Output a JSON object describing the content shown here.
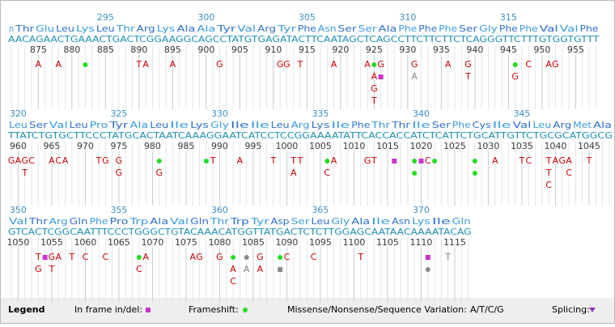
{
  "colors": {
    "aa_a": "#2f6fd0",
    "aa_b": "#3a9be0",
    "sequence": "#1f8fb8",
    "number": "#3a8fc8",
    "variation": "#cc0000",
    "frameshift": "#22dd22",
    "inframe": "#cc33cc",
    "gray": "#8a8a8a",
    "splicing": "#9933cc"
  },
  "rows": [
    {
      "start": 871,
      "aa_numbers": [
        295,
        300,
        305,
        310,
        315
      ],
      "amino_acids": [
        "n",
        "Thr",
        "Glu",
        "Leu",
        "Lys",
        "Leu",
        "Thr",
        "Arg",
        "Lys",
        "Ala",
        "Ala",
        "Tyr",
        "Val",
        "Arg",
        "Tyr",
        "Phe",
        "Asn",
        "Ser",
        "Ser",
        "Ala",
        "Phe",
        "Phe",
        "Phe",
        "Ser",
        "Gly",
        "Phe",
        "Phe",
        "Val",
        "Val",
        "Phe"
      ],
      "sequence": "AACAGAACTGAAACTGACTCGGAAGGCAGCCTATGTGAGATACTTCAATAGCTCAGCCTTCTTCTTCTCAGGGTTCTTTGTGGTGTTT",
      "nt_numbers": [
        875,
        880,
        885,
        890,
        895,
        900,
        905,
        910,
        915,
        920,
        925,
        930,
        935,
        940,
        945,
        950,
        955
      ],
      "variants": [
        {
          "pos": 875,
          "items": [
            {
              "text": "A"
            }
          ]
        },
        {
          "pos": 878,
          "items": [
            {
              "text": "A"
            }
          ]
        },
        {
          "pos": 882,
          "items": [
            {
              "shape": "dot",
              "color": "frameshift"
            }
          ]
        },
        {
          "pos": 890,
          "items": [
            {
              "text": "T"
            }
          ]
        },
        {
          "pos": 891,
          "items": [
            {
              "text": "A"
            }
          ]
        },
        {
          "pos": 895,
          "items": [
            {
              "text": "A"
            }
          ]
        },
        {
          "pos": 902,
          "items": [
            {
              "text": "G"
            }
          ]
        },
        {
          "pos": 911,
          "items": [
            {
              "text": "G"
            }
          ]
        },
        {
          "pos": 912,
          "items": [
            {
              "text": "G"
            }
          ]
        },
        {
          "pos": 914,
          "items": [
            {
              "text": "T"
            }
          ]
        },
        {
          "pos": 919,
          "items": [
            {
              "text": "A"
            }
          ]
        },
        {
          "pos": 924,
          "items": [
            {
              "text": "A"
            }
          ]
        },
        {
          "pos": 925,
          "items": [
            {
              "shape": "dot",
              "color": "frameshift"
            },
            {
              "text": "A"
            },
            {
              "text": "G"
            },
            {
              "text": "T"
            }
          ]
        },
        {
          "pos": 926,
          "items": [
            {
              "text": "G"
            },
            {
              "shape": "square",
              "color": "inframe"
            }
          ]
        },
        {
          "pos": 931,
          "items": [
            {
              "text": "G"
            },
            {
              "text": "A",
              "color": "gray"
            }
          ]
        },
        {
          "pos": 936,
          "items": [
            {
              "text": "A"
            }
          ]
        },
        {
          "pos": 939,
          "items": [
            {
              "text": "G"
            },
            {
              "text": "T"
            }
          ]
        },
        {
          "pos": 946,
          "items": [
            {
              "shape": "dot",
              "color": "frameshift"
            },
            {
              "text": "G"
            }
          ]
        },
        {
          "pos": 948,
          "items": [
            {
              "text": "C"
            }
          ]
        },
        {
          "pos": 951,
          "items": [
            {
              "text": "A"
            }
          ]
        },
        {
          "pos": 952,
          "items": [
            {
              "text": "G"
            }
          ]
        }
      ]
    },
    {
      "start": 959,
      "aa_numbers": [
        320,
        325,
        330,
        335,
        340,
        345
      ],
      "amino_acids": [
        "Leu",
        "Ser",
        "Val",
        "Leu",
        "Pro",
        "Tyr",
        "Ala",
        "Leu",
        "Ile",
        "Lys",
        "Gly",
        "Ile",
        "Ile",
        "Leu",
        "Arg",
        "Lys",
        "Ile",
        "Phe",
        "Thr",
        "Thr",
        "Ile",
        "Ser",
        "Phe",
        "Cys",
        "Ile",
        "Val",
        "Leu",
        "Arg",
        "Met",
        "Ala"
      ],
      "sequence": "TTATCTGTGCTTCCCTATGCACTAATCAAAGGAATCATCCTCCGGAAAATATTCACCACCATCTCATTCTGCATTGTTCTGCGCATGGCG",
      "nt_numbers": [
        960,
        965,
        970,
        975,
        980,
        985,
        990,
        995,
        1000,
        1005,
        1010,
        1015,
        1020,
        1025,
        1030,
        1035,
        1040,
        1045
      ],
      "variants": [
        {
          "pos": 959,
          "items": [
            {
              "text": "G"
            }
          ]
        },
        {
          "pos": 960,
          "items": [
            {
              "text": "A"
            }
          ]
        },
        {
          "pos": 961,
          "items": [
            {
              "text": "G"
            },
            {
              "text": "T"
            }
          ]
        },
        {
          "pos": 962,
          "items": [
            {
              "text": "C"
            }
          ]
        },
        {
          "pos": 965,
          "items": [
            {
              "text": "A"
            }
          ]
        },
        {
          "pos": 966,
          "items": [
            {
              "text": "C"
            }
          ]
        },
        {
          "pos": 967,
          "items": [
            {
              "text": "A"
            }
          ]
        },
        {
          "pos": 972,
          "items": [
            {
              "text": "T"
            }
          ]
        },
        {
          "pos": 973,
          "items": [
            {
              "text": "G"
            }
          ]
        },
        {
          "pos": 975,
          "items": [
            {
              "text": "G"
            },
            {
              "text": "G"
            }
          ]
        },
        {
          "pos": 981,
          "items": [
            {
              "shape": "dot",
              "color": "frameshift"
            },
            {
              "text": "G"
            }
          ]
        },
        {
          "pos": 988,
          "items": [
            {
              "shape": "dot",
              "color": "frameshift"
            }
          ]
        },
        {
          "pos": 989,
          "items": [
            {
              "text": "T"
            }
          ]
        },
        {
          "pos": 993,
          "items": [
            {
              "text": "A"
            }
          ]
        },
        {
          "pos": 998,
          "items": [
            {
              "text": "T"
            }
          ]
        },
        {
          "pos": 1001,
          "items": [
            {
              "text": "T"
            },
            {
              "text": "A"
            }
          ]
        },
        {
          "pos": 1002,
          "items": [
            {
              "text": "T"
            }
          ]
        },
        {
          "pos": 1006,
          "items": [
            {
              "shape": "dot",
              "color": "frameshift"
            },
            {
              "text": "C"
            }
          ]
        },
        {
          "pos": 1007,
          "items": [
            {
              "text": "A"
            }
          ]
        },
        {
          "pos": 1012,
          "items": [
            {
              "text": "G"
            }
          ]
        },
        {
          "pos": 1013,
          "items": [
            {
              "text": "T"
            }
          ]
        },
        {
          "pos": 1016,
          "items": [
            {
              "shape": "square",
              "color": "inframe"
            }
          ]
        },
        {
          "pos": 1019,
          "items": [
            {
              "shape": "dot",
              "color": "frameshift"
            },
            {
              "shape": "dot",
              "color": "frameshift"
            }
          ]
        },
        {
          "pos": 1020,
          "items": [
            {
              "shape": "square",
              "color": "inframe"
            }
          ]
        },
        {
          "pos": 1021,
          "items": [
            {
              "text": "C"
            }
          ]
        },
        {
          "pos": 1022,
          "items": [
            {
              "shape": "dot",
              "color": "frameshift"
            }
          ]
        },
        {
          "pos": 1028,
          "items": [
            {
              "shape": "dot",
              "color": "frameshift"
            },
            {
              "shape": "dot",
              "color": "frameshift"
            }
          ]
        },
        {
          "pos": 1031,
          "items": [
            {
              "text": "A"
            }
          ]
        },
        {
          "pos": 1035,
          "items": [
            {
              "text": "T"
            }
          ]
        },
        {
          "pos": 1036,
          "items": [
            {
              "text": "C"
            }
          ]
        },
        {
          "pos": 1039,
          "items": [
            {
              "text": "T"
            },
            {
              "text": "T"
            },
            {
              "text": "C"
            }
          ]
        },
        {
          "pos": 1040,
          "items": [
            {
              "text": "A"
            }
          ]
        },
        {
          "pos": 1041,
          "items": [
            {
              "text": "G"
            }
          ]
        },
        {
          "pos": 1042,
          "items": [
            {
              "text": "A"
            },
            {
              "text": "C"
            }
          ]
        },
        {
          "pos": 1045,
          "items": [
            {
              "text": "T"
            }
          ]
        }
      ]
    },
    {
      "start": 1049,
      "aa_numbers": [
        350,
        355,
        360,
        365,
        370
      ],
      "amino_acids": [
        "Val",
        "Thr",
        "Arg",
        "Gln",
        "Phe",
        "Pro",
        "Trp",
        "Ala",
        "Val",
        "Gln",
        "Thr",
        "Trp",
        "Tyr",
        "Asp",
        "Ser",
        "Leu",
        "Gly",
        "Ala",
        "Ile",
        "Asn",
        "Lys",
        "Ile",
        "Gln"
      ],
      "sequence": "GTCACTCGGCAATTTCCCTGGGCTGTACAAACATGGTTATGACTCTCTTGGAGCAATAACAAAATACAG",
      "nt_numbers": [
        1050,
        1055,
        1060,
        1065,
        1070,
        1075,
        1080,
        1085,
        1090,
        1095,
        1100,
        1105,
        1110,
        1115
      ],
      "variants": [
        {
          "pos": 1053,
          "items": [
            {
              "text": "T"
            },
            {
              "text": "G"
            }
          ]
        },
        {
          "pos": 1054,
          "items": [
            {
              "shape": "square",
              "color": "inframe"
            }
          ]
        },
        {
          "pos": 1055,
          "items": [
            {
              "text": "G"
            },
            {
              "text": "T"
            }
          ]
        },
        {
          "pos": 1056,
          "items": [
            {
              "text": "A"
            }
          ]
        },
        {
          "pos": 1058,
          "items": [
            {
              "text": "T"
            }
          ]
        },
        {
          "pos": 1060,
          "items": [
            {
              "text": "C"
            }
          ]
        },
        {
          "pos": 1063,
          "items": [
            {
              "text": "C"
            }
          ]
        },
        {
          "pos": 1068,
          "items": [
            {
              "shape": "dot",
              "color": "frameshift"
            },
            {
              "text": "C"
            }
          ]
        },
        {
          "pos": 1069,
          "items": [
            {
              "text": "A"
            }
          ]
        },
        {
          "pos": 1076,
          "items": [
            {
              "text": "A"
            }
          ]
        },
        {
          "pos": 1077,
          "items": [
            {
              "text": "G"
            }
          ]
        },
        {
          "pos": 1080,
          "items": [
            {
              "text": "G"
            }
          ]
        },
        {
          "pos": 1082,
          "items": [
            {
              "shape": "dot",
              "color": "frameshift"
            },
            {
              "text": "A"
            },
            {
              "text": "C"
            }
          ]
        },
        {
          "pos": 1084,
          "items": [
            {
              "shape": "dot",
              "color": "gray"
            },
            {
              "text": "A",
              "color": "gray"
            }
          ]
        },
        {
          "pos": 1086,
          "items": [
            {
              "text": "G"
            },
            {
              "text": "A"
            }
          ]
        },
        {
          "pos": 1089,
          "items": [
            {
              "shape": "dot",
              "color": "frameshift"
            },
            {
              "shape": "square",
              "color": "gray"
            }
          ]
        },
        {
          "pos": 1090,
          "items": [
            {
              "text": "C"
            }
          ]
        },
        {
          "pos": 1094,
          "items": [
            {
              "text": "C"
            }
          ]
        },
        {
          "pos": 1101,
          "items": [
            {
              "text": "T"
            }
          ]
        },
        {
          "pos": 1111,
          "items": [
            {
              "shape": "square",
              "color": "inframe"
            },
            {
              "shape": "dot",
              "color": "gray"
            }
          ]
        },
        {
          "pos": 1114,
          "items": [
            {
              "text": "T",
              "color": "gray"
            }
          ]
        }
      ]
    }
  ],
  "legend": {
    "title": "Legend",
    "inframe": "In frame in/del:",
    "frameshift": "Frameshift:",
    "missense": "Missense/Nonsense/Sequence Variation:",
    "letters": "A/T/C/G",
    "splicing": "Splicing:"
  }
}
